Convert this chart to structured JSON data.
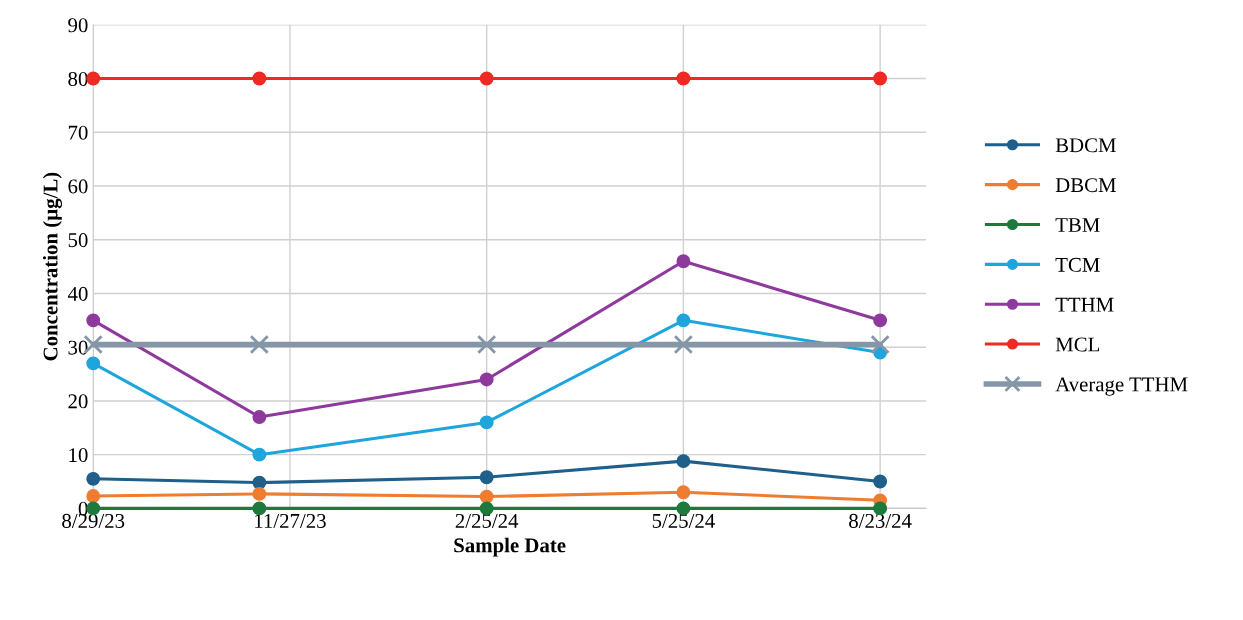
{
  "chart_data": {
    "type": "line",
    "xlabel": "Sample Date",
    "ylabel": "Concentration (µg/L)",
    "x": [
      "2023-08-29",
      "2023-11-13",
      "2024-02-25",
      "2024-05-25",
      "2024-08-23"
    ],
    "series": [
      {
        "name": "BDCM",
        "color": "#1f5f8b",
        "values": [
          5.5,
          4.8,
          5.8,
          8.8,
          5.0
        ],
        "marker": "circle"
      },
      {
        "name": "DBCM",
        "color": "#ee7d31",
        "values": [
          2.3,
          2.7,
          2.2,
          3.0,
          1.5
        ],
        "marker": "circle"
      },
      {
        "name": "TBM",
        "color": "#1e7a3c",
        "values": [
          0,
          0,
          0,
          0,
          0
        ],
        "marker": "circle"
      },
      {
        "name": "TCM",
        "color": "#1ea5dc",
        "values": [
          27,
          10,
          16,
          35,
          29
        ],
        "marker": "circle"
      },
      {
        "name": "TTHM",
        "color": "#8e3a9d",
        "values": [
          35,
          17,
          24,
          46,
          35
        ],
        "marker": "circle"
      },
      {
        "name": "MCL",
        "color": "#ee2a24",
        "values": [
          80,
          80,
          80,
          80,
          80
        ],
        "marker": "circle"
      },
      {
        "name": "Average TTHM",
        "color": "#8496a8",
        "values": [
          30.5,
          30.5,
          30.5,
          30.5,
          30.5
        ],
        "marker": "cross"
      }
    ],
    "xlim": [
      "2023-08-29",
      "2024-09-13"
    ],
    "xticks": [
      {
        "value": "2023-08-29",
        "label": "8/29/23"
      },
      {
        "value": "2023-11-27",
        "label": "11/27/23"
      },
      {
        "value": "2024-02-25",
        "label": "2/25/24"
      },
      {
        "value": "2024-05-25",
        "label": "5/25/24"
      },
      {
        "value": "2024-08-23",
        "label": "8/23/24"
      }
    ],
    "ylim": [
      0,
      90
    ],
    "yticks": [
      0,
      10,
      20,
      30,
      40,
      50,
      60,
      70,
      80,
      90
    ],
    "grid": true,
    "legend": "right",
    "line_style": "solid"
  }
}
